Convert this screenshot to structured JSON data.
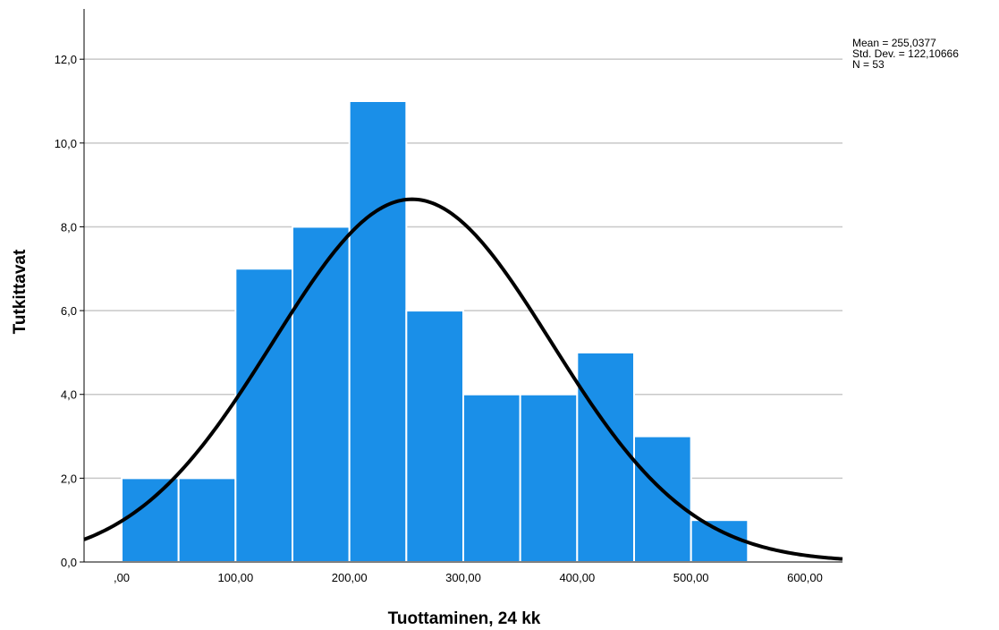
{
  "chart_data": {
    "type": "bar",
    "subtype": "histogram",
    "xlabel": "Tuottaminen, 24 kk",
    "ylabel": "Tutkittavat",
    "bin_edges": [
      0,
      50,
      100,
      150,
      200,
      250,
      300,
      350,
      400,
      450,
      500,
      550
    ],
    "values": [
      2,
      2,
      7,
      8,
      11,
      6,
      4,
      4,
      5,
      3,
      1
    ],
    "xlim": [
      -33,
      633
    ],
    "ylim": [
      0,
      13.2
    ],
    "x_ticks": [
      0,
      100,
      200,
      300,
      400,
      500,
      600
    ],
    "x_tick_labels": [
      ",00",
      "100,00",
      "200,00",
      "300,00",
      "400,00",
      "500,00",
      "600,00"
    ],
    "y_ticks": [
      0,
      2,
      4,
      6,
      8,
      10,
      12
    ],
    "y_tick_labels": [
      "0,0",
      "2,0",
      "4,0",
      "6,0",
      "8,0",
      "10,0",
      "12,0"
    ],
    "grid": "horizontal",
    "bar_color": "#1a8fe8",
    "bar_edge_color": "#ffffff",
    "curve_color": "#000000",
    "normal_curve": {
      "mean": 255.0377,
      "std": 122.10666,
      "n": 53,
      "bin_width": 50
    },
    "stats": [
      "Mean = 255,0377",
      "Std. Dev. = 122,10666",
      "N = 53"
    ]
  }
}
